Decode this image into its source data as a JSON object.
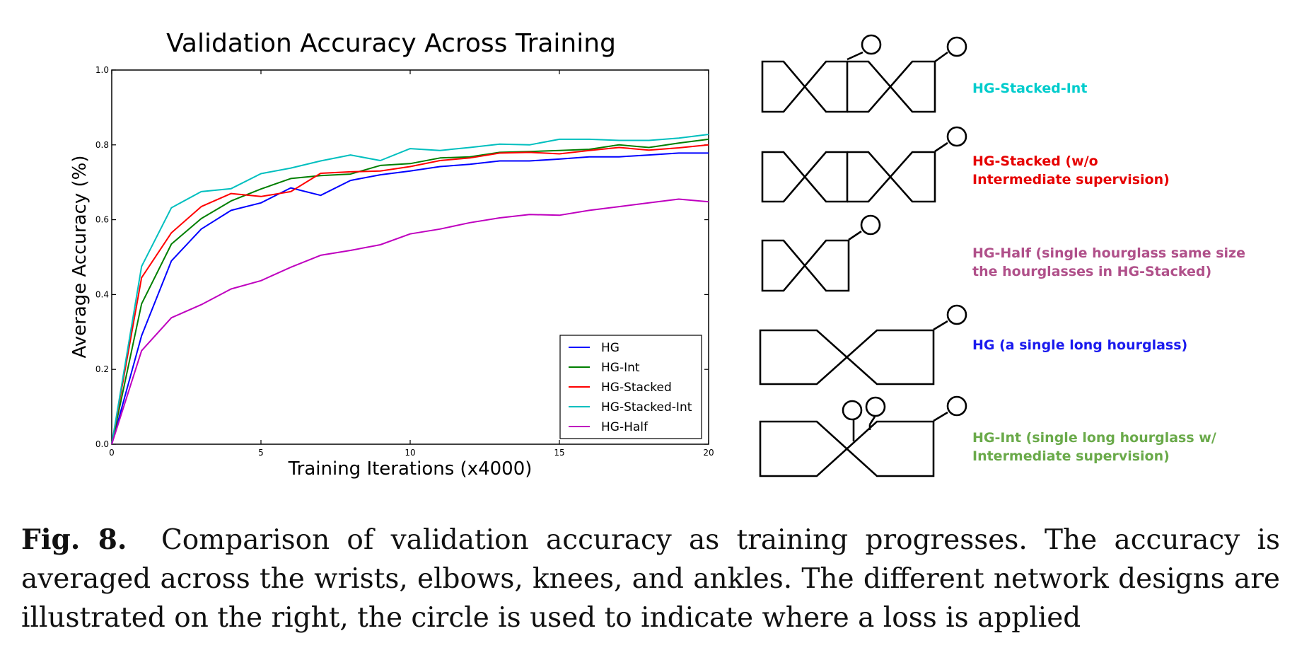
{
  "chart_data": {
    "type": "line",
    "title": "Validation Accuracy Across Training",
    "xlabel": "Training Iterations (x4000)",
    "ylabel": "Average Accuracy (%)",
    "xlim": [
      0,
      20
    ],
    "ylim": [
      0.0,
      1.0
    ],
    "xticks": [
      "0",
      "5",
      "10",
      "15",
      "20"
    ],
    "yticks": [
      "0.0",
      "0.2",
      "0.4",
      "0.6",
      "0.8",
      "1.0"
    ],
    "grid": false,
    "legend_position": "lower-right",
    "x": [
      0,
      1,
      2,
      3,
      4,
      5,
      6,
      7,
      8,
      9,
      10,
      11,
      12,
      13,
      14,
      15,
      16,
      17,
      18,
      19,
      20
    ],
    "series": [
      {
        "name": "HG",
        "color": "#0000ff",
        "values": [
          0.0,
          0.29,
          0.49,
          0.575,
          0.625,
          0.645,
          0.685,
          0.665,
          0.705,
          0.72,
          0.73,
          0.742,
          0.748,
          0.757,
          0.757,
          0.762,
          0.768,
          0.768,
          0.773,
          0.778,
          0.778
        ]
      },
      {
        "name": "HG-Int",
        "color": "#007f00",
        "values": [
          0.0,
          0.375,
          0.535,
          0.603,
          0.65,
          0.682,
          0.71,
          0.718,
          0.722,
          0.745,
          0.75,
          0.765,
          0.768,
          0.78,
          0.782,
          0.785,
          0.788,
          0.8,
          0.793,
          0.805,
          0.815
        ]
      },
      {
        "name": "HG-Stacked",
        "color": "#ff0000",
        "values": [
          0.0,
          0.445,
          0.565,
          0.635,
          0.67,
          0.662,
          0.675,
          0.724,
          0.728,
          0.73,
          0.742,
          0.758,
          0.765,
          0.778,
          0.78,
          0.776,
          0.785,
          0.793,
          0.786,
          0.792,
          0.8
        ]
      },
      {
        "name": "HG-Stacked-Int",
        "color": "#00bfbf",
        "values": [
          0.0,
          0.475,
          0.632,
          0.675,
          0.683,
          0.723,
          0.738,
          0.757,
          0.773,
          0.758,
          0.79,
          0.785,
          0.793,
          0.802,
          0.8,
          0.815,
          0.815,
          0.812,
          0.812,
          0.818,
          0.828
        ]
      },
      {
        "name": "HG-Half",
        "color": "#bf00bf",
        "values": [
          0.0,
          0.25,
          0.338,
          0.373,
          0.415,
          0.437,
          0.473,
          0.505,
          0.518,
          0.533,
          0.562,
          0.575,
          0.592,
          0.605,
          0.614,
          0.612,
          0.625,
          0.635,
          0.645,
          0.655,
          0.648
        ]
      }
    ]
  },
  "diagram": {
    "labels": [
      {
        "lines": [
          "HG-Stacked-Int"
        ],
        "color": "#00cccc"
      },
      {
        "lines": [
          "HG-Stacked (w/o",
          "Intermediate supervision)"
        ],
        "color": "#e60000"
      },
      {
        "lines": [
          "HG-Half (single hourglass same size",
          "the hourglasses in HG-Stacked)"
        ],
        "color": "#b0508a"
      },
      {
        "lines": [
          "HG (a single long hourglass)"
        ],
        "color": "#1a1aee"
      },
      {
        "lines": [
          "HG-Int (single long hourglass w/",
          "Intermediate supervision)"
        ],
        "color": "#6aaa4a"
      }
    ]
  },
  "caption": {
    "fig_label": "Fig. 8.",
    "text": "Comparison of validation accuracy as training progresses. The accuracy is averaged across the wrists, elbows, knees, and ankles. The different network designs are illustrated on the right, the circle is used to indicate where a loss is applied"
  }
}
